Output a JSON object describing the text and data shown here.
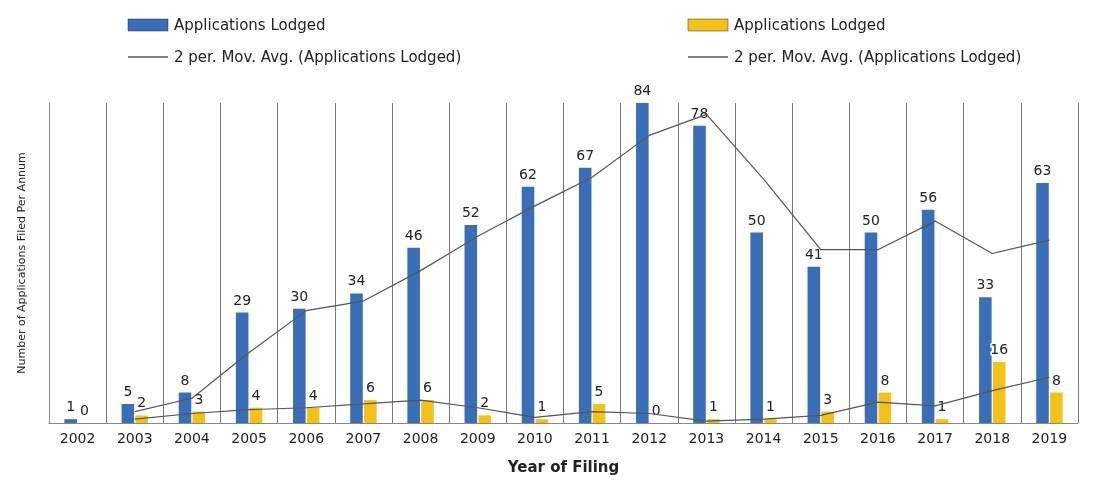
{
  "chart_data": {
    "type": "bar",
    "xlabel": "Year of Filing",
    "ylabel": "Number of Applications Filed Per Annum",
    "categories": [
      "2002",
      "2003",
      "2004",
      "2005",
      "2006",
      "2007",
      "2008",
      "2009",
      "2010",
      "2011",
      "2012",
      "2013",
      "2014",
      "2015",
      "2016",
      "2017",
      "2018",
      "2019"
    ],
    "series": [
      {
        "name": "Applications Lodged",
        "color": "#3a6fb8",
        "values": [
          1,
          5,
          8,
          29,
          30,
          34,
          46,
          52,
          62,
          67,
          84,
          78,
          50,
          41,
          50,
          56,
          33,
          63
        ],
        "value_labels": [
          "1",
          "5",
          "8",
          "29",
          "30",
          "34",
          "46",
          "52",
          "62",
          "67",
          "84",
          "78",
          "50",
          "41",
          "50",
          "56",
          "33",
          "63"
        ]
      },
      {
        "name": "Applications Lodged",
        "color": "#f2c21b",
        "values": [
          0,
          2,
          3,
          4,
          4,
          6,
          6,
          2,
          1,
          5,
          0,
          1,
          1,
          3,
          8,
          1,
          16,
          8
        ],
        "value_labels": [
          "0",
          "2",
          "3",
          "4",
          "4",
          "6",
          "6",
          "2",
          "1",
          "5",
          "0",
          "1",
          "1",
          "3",
          "8",
          "1",
          "16",
          "8"
        ]
      },
      {
        "name": "2 per. Mov. Avg. (Applications Lodged)",
        "type": "line",
        "color": "#555555",
        "values": [
          null,
          3,
          6.5,
          18.5,
          29.5,
          32,
          40,
          49,
          57,
          64.5,
          75.5,
          81,
          64,
          45.5,
          45.5,
          53,
          44.5,
          48
        ]
      },
      {
        "name": "2 per. Mov. Avg. (Applications Lodged)",
        "type": "line",
        "color": "#555555",
        "values": [
          null,
          1,
          2.5,
          3.5,
          4,
          5,
          6,
          4,
          1.5,
          3,
          2.5,
          0.5,
          1,
          2,
          5.5,
          4.5,
          8.5,
          12
        ]
      }
    ],
    "grid": "x",
    "legend": "top",
    "tick_labels": "x",
    "marker": "none"
  }
}
